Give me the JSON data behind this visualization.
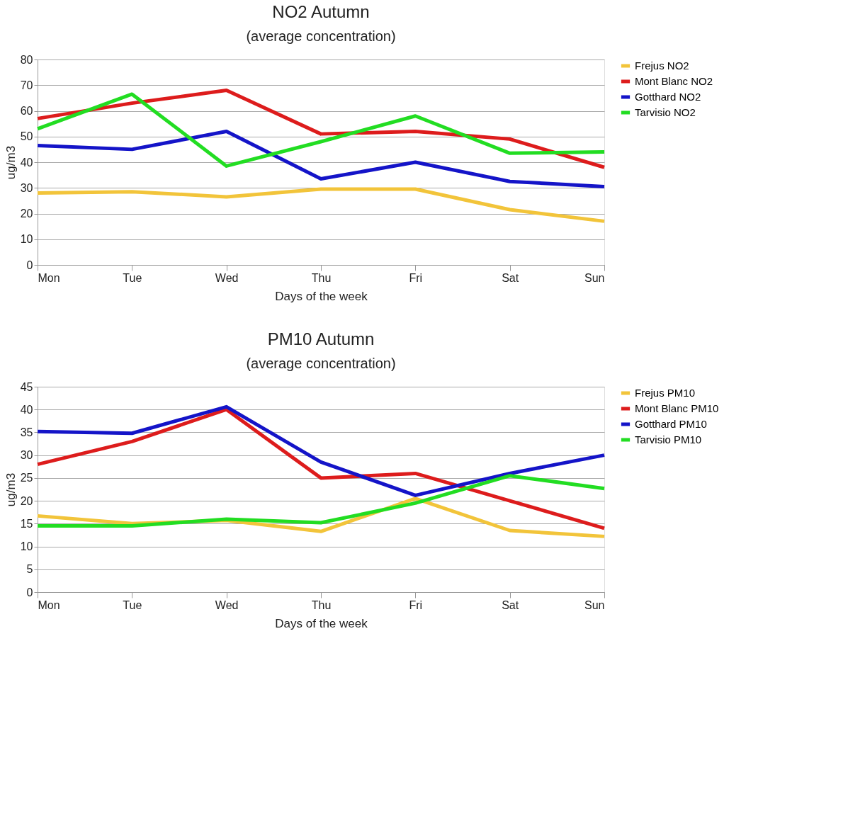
{
  "chart_data": [
    {
      "type": "line",
      "title": "NO2 Autumn",
      "subtitle": "(average concentration)",
      "xlabel": "Days of the week",
      "ylabel": "ug/m3",
      "categories": [
        "Mon",
        "Tue",
        "Wed",
        "Thu",
        "Fri",
        "Sat",
        "Sun"
      ],
      "ylim": [
        0,
        80
      ],
      "yticks": [
        0,
        10,
        20,
        30,
        40,
        50,
        60,
        70,
        80
      ],
      "grid": "y",
      "legend": "right",
      "marker": "none",
      "line_style": "solid",
      "series": [
        {
          "name": "Frejus NO2",
          "color": "#f2c43a",
          "values": [
            28,
            28.5,
            26.5,
            29.5,
            29.5,
            21.5,
            17
          ]
        },
        {
          "name": "Mont Blanc NO2",
          "color": "#dd1c1c",
          "values": [
            57,
            63,
            68,
            51,
            52,
            49,
            38
          ]
        },
        {
          "name": "Gotthard NO2",
          "color": "#1414c8",
          "values": [
            46.5,
            45,
            52,
            33.5,
            40,
            32.5,
            30.5
          ]
        },
        {
          "name": "Tarvisio NO2",
          "color": "#22dd22",
          "values": [
            53,
            66.5,
            38.5,
            48,
            58,
            43.5,
            44
          ]
        }
      ]
    },
    {
      "type": "line",
      "title": "PM10 Autumn",
      "subtitle": "(average concentration)",
      "xlabel": "Days of the week",
      "ylabel": "ug/m3",
      "categories": [
        "Mon",
        "Tue",
        "Wed",
        "Thu",
        "Fri",
        "Sat",
        "Sun"
      ],
      "ylim": [
        0,
        45
      ],
      "yticks": [
        0,
        5,
        10,
        15,
        20,
        25,
        30,
        35,
        40,
        45
      ],
      "grid": "y",
      "legend": "right",
      "marker": "none",
      "line_style": "solid",
      "series": [
        {
          "name": "Frejus PM10",
          "color": "#f2c43a",
          "values": [
            16.7,
            15,
            15.7,
            13.3,
            20.5,
            13.5,
            12.2
          ]
        },
        {
          "name": "Mont Blanc PM10",
          "color": "#dd1c1c",
          "values": [
            28,
            33,
            40,
            25,
            26,
            20,
            14
          ]
        },
        {
          "name": "Gotthard PM10",
          "color": "#1414c8",
          "values": [
            35.2,
            34.8,
            40.6,
            28.5,
            21.2,
            26,
            30
          ]
        },
        {
          "name": "Tarvisio PM10",
          "color": "#22dd22",
          "values": [
            14.5,
            14.5,
            16,
            15.2,
            19.5,
            25.5,
            22.7
          ]
        }
      ]
    }
  ]
}
